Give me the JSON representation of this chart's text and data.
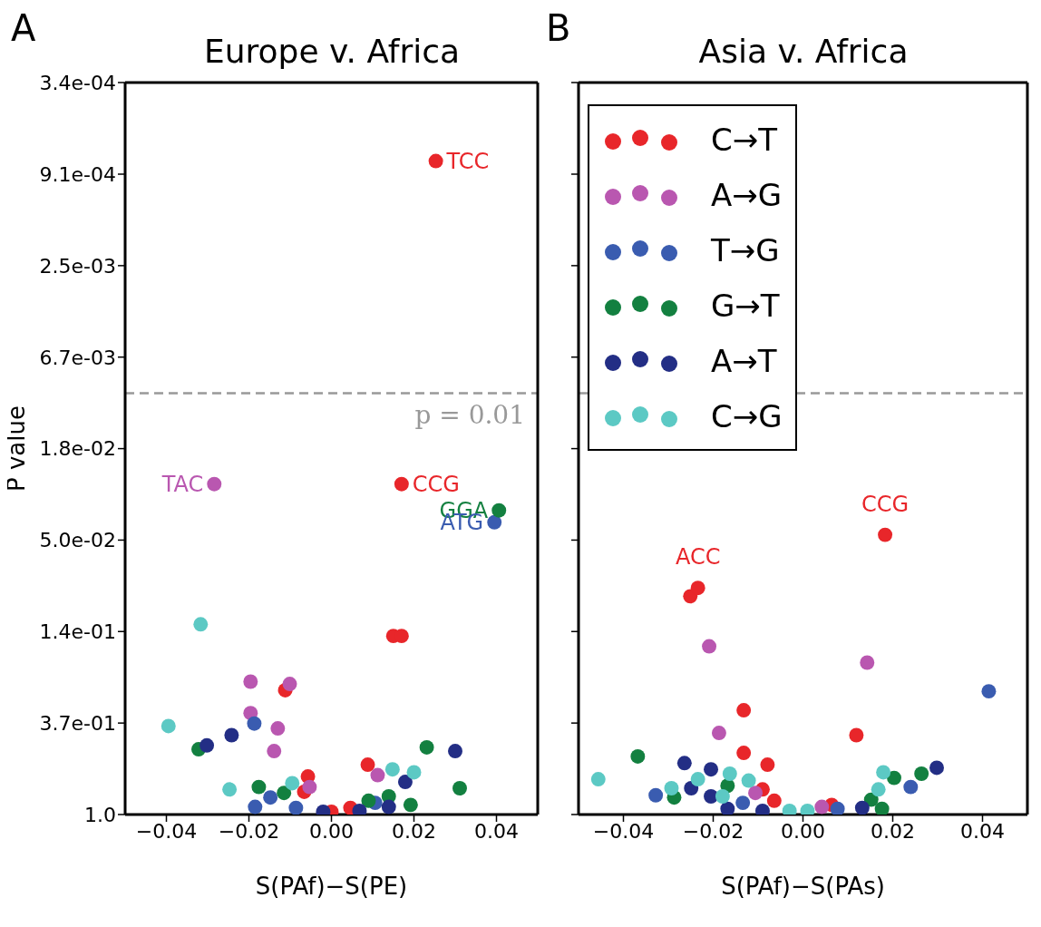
{
  "chart_data": [
    {
      "type": "scatter",
      "title": "Europe v. Africa",
      "xlabel": "S(PAf)−S(PE)",
      "ylabel": "P value",
      "annotations": [
        "A",
        {
          "text": "TCC",
          "x": 0.0253,
          "y": 0.00079
        },
        {
          "text": "TAC",
          "x": -0.0284,
          "y": 0.027
        },
        {
          "text": "CCG",
          "x": 0.017,
          "y": 0.027
        },
        {
          "text": "GGA",
          "x": 0.0406,
          "y": 0.036
        },
        {
          "text": "ATG",
          "x": 0.0395,
          "y": 0.041
        }
      ],
      "xlim": [
        -0.05,
        0.05
      ],
      "xticks": [
        {
          "value": -0.04,
          "label": "−0.04"
        },
        {
          "value": -0.02,
          "label": "−0.02"
        },
        {
          "value": 0,
          "label": "0.00"
        },
        {
          "value": 0.02,
          "label": "0.02"
        },
        {
          "value": 0.04,
          "label": "0.04"
        }
      ],
      "ylim": [
        1.0,
        0.000335
      ],
      "log": "y",
      "yticks": [
        {
          "value": 1,
          "label": "1.0"
        },
        {
          "value": 0.3679,
          "label": "3.7e-01"
        },
        {
          "value": 0.1353,
          "label": "1.4e-01"
        },
        {
          "value": 0.04979,
          "label": "5.0e-02"
        },
        {
          "value": 0.01832,
          "label": "1.8e-02"
        },
        {
          "value": 0.006738,
          "label": "6.7e-03"
        },
        {
          "value": 0.002479,
          "label": "2.5e-03"
        },
        {
          "value": 0.000912,
          "label": "9.1e-04"
        },
        {
          "value": 0.000335,
          "label": "3.4e-04"
        }
      ],
      "ref_lines": [
        {
          "axis": "y",
          "value": 0.01,
          "label": "p = 0.01",
          "color": "#999999",
          "line_style": "dashed"
        }
      ],
      "marker": "circle",
      "legend": false,
      "series": [
        {
          "color": "#e8262a",
          "x": [
            0.0253,
            0.017,
            0.015,
            0.017,
            -0.0112,
            0.0088,
            -0.0057,
            -0.0066,
            0.0,
            0.0046
          ],
          "values": [
            0.00079,
            0.027,
            0.142,
            0.142,
            0.257,
            0.58,
            0.66,
            0.78,
            0.97,
            0.93
          ]
        },
        {
          "color": "#b957b0",
          "x": [
            -0.0284,
            -0.0196,
            -0.0101,
            -0.0196,
            -0.013,
            -0.0139,
            0.0112,
            -0.0053
          ],
          "values": [
            0.027,
            0.234,
            0.24,
            0.33,
            0.39,
            0.5,
            0.65,
            0.74
          ]
        },
        {
          "color": "#3a5cb0",
          "x": [
            0.0395,
            -0.0187,
            -0.0148,
            -0.0185,
            -0.0086,
            0.0106
          ],
          "values": [
            0.041,
            0.37,
            0.83,
            0.92,
            0.93,
            0.88
          ]
        },
        {
          "color": "#138040",
          "x": [
            0.0406,
            -0.0322,
            -0.0176,
            -0.0115,
            0.0231,
            0.0311,
            0.0192,
            0.0139,
            0.009
          ],
          "values": [
            0.036,
            0.49,
            0.74,
            0.79,
            0.48,
            0.75,
            0.9,
            0.82,
            0.86
          ]
        },
        {
          "color": "#232e85",
          "x": [
            -0.0302,
            -0.0242,
            0.03,
            0.0179,
            0.0139,
            -0.002,
            0.0068
          ],
          "values": [
            0.47,
            0.42,
            0.5,
            0.7,
            0.92,
            0.97,
            0.96
          ]
        },
        {
          "color": "#5cc9c4",
          "x": [
            -0.0317,
            -0.0395,
            -0.0247,
            -0.0095,
            0.0148,
            0.02
          ],
          "values": [
            0.125,
            0.38,
            0.76,
            0.71,
            0.61,
            0.63
          ]
        }
      ]
    },
    {
      "type": "scatter",
      "title": "Asia v. Africa",
      "xlabel": "S(PAf)−S(PAs)",
      "annotations": [
        "B",
        {
          "text": "ACC",
          "x": -0.0234,
          "y": 0.084
        },
        {
          "text": "CCG",
          "x": 0.0183,
          "y": 0.047
        }
      ],
      "xlim": [
        -0.05,
        0.05
      ],
      "xticks": [
        {
          "value": -0.04,
          "label": "−0.04"
        },
        {
          "value": -0.02,
          "label": "−0.02"
        },
        {
          "value": 0,
          "label": "0.00"
        },
        {
          "value": 0.02,
          "label": "0.02"
        },
        {
          "value": 0.04,
          "label": "0.04"
        }
      ],
      "ylim": [
        1.0,
        0.000335
      ],
      "log": "y",
      "yticks": [
        {
          "value": 1,
          "label": null
        },
        {
          "value": 0.3679,
          "label": null
        },
        {
          "value": 0.1353,
          "label": null
        },
        {
          "value": 0.04979,
          "label": null
        },
        {
          "value": 0.01832,
          "label": null
        },
        {
          "value": 0.006738,
          "label": null
        },
        {
          "value": 0.002479,
          "label": null
        },
        {
          "value": 0.000912,
          "label": null
        },
        {
          "value": 0.000335,
          "label": null
        }
      ],
      "tick_labels": "x",
      "ref_lines": [
        {
          "axis": "y",
          "value": 0.01,
          "color": "#999999",
          "line_style": "dashed"
        }
      ],
      "marker": "circle",
      "legend": "top left",
      "series": [
        {
          "name": "C→T",
          "color": "#e8262a",
          "x": [
            0.0183,
            -0.0251,
            -0.0234,
            -0.0132,
            0.0119,
            -0.0132,
            -0.0079,
            -0.009,
            -0.0064,
            0.0064
          ],
          "values": [
            0.047,
            0.092,
            0.084,
            0.32,
            0.42,
            0.51,
            0.58,
            0.76,
            0.86,
            0.9
          ]
        },
        {
          "name": "A→G",
          "color": "#b957b0",
          "x": [
            -0.0209,
            0.0143,
            -0.0187,
            0.0042,
            -0.0106
          ],
          "values": [
            0.159,
            0.19,
            0.41,
            0.92,
            0.79
          ]
        },
        {
          "name": "T→G",
          "color": "#3a5cb0",
          "x": [
            0.0414,
            -0.0328,
            0.024,
            -0.0134,
            0.0077
          ],
          "values": [
            0.26,
            0.81,
            0.74,
            0.88,
            0.94
          ]
        },
        {
          "name": "G→T",
          "color": "#138040",
          "x": [
            -0.0368,
            -0.0287,
            0.0203,
            0.0264,
            0.0152,
            0.0176,
            -0.0168
          ],
          "values": [
            0.53,
            0.83,
            0.67,
            0.64,
            0.85,
            0.94,
            0.73
          ]
        },
        {
          "name": "A→T",
          "color": "#232e85",
          "x": [
            -0.0264,
            -0.0205,
            -0.0249,
            0.0298,
            -0.0205,
            -0.0168,
            0.0132,
            -0.009
          ],
          "values": [
            0.57,
            0.61,
            0.75,
            0.6,
            0.82,
            0.94,
            0.93,
            0.96
          ]
        },
        {
          "name": "C→G",
          "color": "#5cc9c4",
          "x": [
            -0.0456,
            -0.0234,
            -0.0163,
            -0.0121,
            0.0179,
            0.0168,
            -0.0293,
            -0.0179,
            0.001,
            -0.003
          ],
          "values": [
            0.68,
            0.68,
            0.64,
            0.69,
            0.63,
            0.76,
            0.75,
            0.82,
            0.96,
            0.96
          ]
        }
      ]
    }
  ]
}
